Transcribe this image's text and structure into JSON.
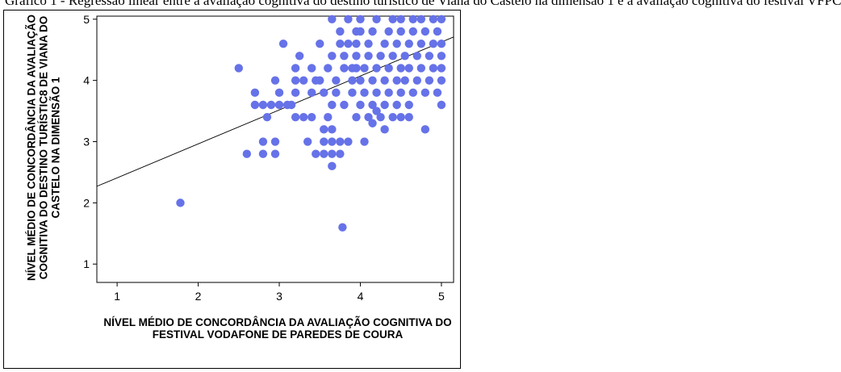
{
  "caption": "Gráfico 1 - Regressão linear entre a avaliação cognitiva do destino turístico de Viana do Castelo na dimensão 1 e a avaliação cognitiva do festival VFPC",
  "chart_data": {
    "type": "scatter",
    "title": "",
    "xlabel": "NÍVEL MÉDIO DE CONCORDÂNCIA DA AVALIAÇÃO COGNITIVA DO FESTIVAL VODAFONE DE PAREDES DE COURA",
    "ylabel": "NÍVEL MÉDIO DE CONCORDÂNCIA DA AVALIAÇÃO COGNITIVA DO DESTINO TURÍSTIC8 DE VIANA DO CASTELO NA DIMENSÃO 1",
    "xlim": [
      0.75,
      5.15
    ],
    "ylim": [
      0.7,
      5.05
    ],
    "xticks": [
      "1",
      "2",
      "3",
      "4",
      "5"
    ],
    "yticks": [
      "1",
      "2",
      "3",
      "4",
      "5"
    ],
    "grid": false,
    "point_color": "#6672e8",
    "regression_line": {
      "x0": 0.75,
      "y0": 2.27,
      "x1": 5.15,
      "y1": 4.71
    },
    "points": [
      [
        1.78,
        2.0
      ],
      [
        2.5,
        4.2
      ],
      [
        2.6,
        2.8
      ],
      [
        2.7,
        3.8
      ],
      [
        2.7,
        3.6
      ],
      [
        2.8,
        3.6
      ],
      [
        2.8,
        3.0
      ],
      [
        2.8,
        2.8
      ],
      [
        2.85,
        3.4
      ],
      [
        2.9,
        3.6
      ],
      [
        2.95,
        3.0
      ],
      [
        2.95,
        2.8
      ],
      [
        2.95,
        4.0
      ],
      [
        3.0,
        3.6
      ],
      [
        3.0,
        3.8
      ],
      [
        3.05,
        4.6
      ],
      [
        3.1,
        3.6
      ],
      [
        3.15,
        3.6
      ],
      [
        3.2,
        3.4
      ],
      [
        3.2,
        4.0
      ],
      [
        3.2,
        4.2
      ],
      [
        3.2,
        3.8
      ],
      [
        3.25,
        4.4
      ],
      [
        3.3,
        3.4
      ],
      [
        3.3,
        4.0
      ],
      [
        3.35,
        3.0
      ],
      [
        3.4,
        4.2
      ],
      [
        3.4,
        3.8
      ],
      [
        3.4,
        3.4
      ],
      [
        3.45,
        4.0
      ],
      [
        3.45,
        2.8
      ],
      [
        3.5,
        4.6
      ],
      [
        3.5,
        4.0
      ],
      [
        3.55,
        3.8
      ],
      [
        3.55,
        3.2
      ],
      [
        3.55,
        3.0
      ],
      [
        3.55,
        2.8
      ],
      [
        3.6,
        4.2
      ],
      [
        3.6,
        3.4
      ],
      [
        3.65,
        5.0
      ],
      [
        3.65,
        4.4
      ],
      [
        3.65,
        3.6
      ],
      [
        3.65,
        3.2
      ],
      [
        3.65,
        3.0
      ],
      [
        3.65,
        2.8
      ],
      [
        3.65,
        2.6
      ],
      [
        3.7,
        4.0
      ],
      [
        3.7,
        3.8
      ],
      [
        3.75,
        4.8
      ],
      [
        3.75,
        4.6
      ],
      [
        3.75,
        3.0
      ],
      [
        3.75,
        2.8
      ],
      [
        3.78,
        1.6
      ],
      [
        3.8,
        4.4
      ],
      [
        3.8,
        4.2
      ],
      [
        3.8,
        3.6
      ],
      [
        3.85,
        3.0
      ],
      [
        3.85,
        4.6
      ],
      [
        3.85,
        5.0
      ],
      [
        3.9,
        4.0
      ],
      [
        3.9,
        4.2
      ],
      [
        3.9,
        3.8
      ],
      [
        3.95,
        4.8
      ],
      [
        3.95,
        4.6
      ],
      [
        3.95,
        4.4
      ],
      [
        3.95,
        4.2
      ],
      [
        3.95,
        3.4
      ],
      [
        4.0,
        3.6
      ],
      [
        4.0,
        4.0
      ],
      [
        4.0,
        4.8
      ],
      [
        4.0,
        5.0
      ],
      [
        4.05,
        4.2
      ],
      [
        4.05,
        3.8
      ],
      [
        4.05,
        3.0
      ],
      [
        4.1,
        4.6
      ],
      [
        4.1,
        4.4
      ],
      [
        4.1,
        3.4
      ],
      [
        4.15,
        4.8
      ],
      [
        4.15,
        4.0
      ],
      [
        4.15,
        3.6
      ],
      [
        4.15,
        3.3
      ],
      [
        4.2,
        4.2
      ],
      [
        4.2,
        3.8
      ],
      [
        4.2,
        3.5
      ],
      [
        4.2,
        5.0
      ],
      [
        4.25,
        4.4
      ],
      [
        4.25,
        3.4
      ],
      [
        4.3,
        4.6
      ],
      [
        4.3,
        4.0
      ],
      [
        4.3,
        3.6
      ],
      [
        4.3,
        3.2
      ],
      [
        4.35,
        4.8
      ],
      [
        4.35,
        4.2
      ],
      [
        4.35,
        3.8
      ],
      [
        4.4,
        5.0
      ],
      [
        4.4,
        4.4
      ],
      [
        4.4,
        3.4
      ],
      [
        4.45,
        4.6
      ],
      [
        4.45,
        4.0
      ],
      [
        4.45,
        3.6
      ],
      [
        4.5,
        4.8
      ],
      [
        4.5,
        4.2
      ],
      [
        4.5,
        3.8
      ],
      [
        4.5,
        3.4
      ],
      [
        4.5,
        5.0
      ],
      [
        4.55,
        4.4
      ],
      [
        4.55,
        4.0
      ],
      [
        4.6,
        4.6
      ],
      [
        4.6,
        4.2
      ],
      [
        4.6,
        3.6
      ],
      [
        4.6,
        3.4
      ],
      [
        4.65,
        5.0
      ],
      [
        4.65,
        4.8
      ],
      [
        4.65,
        3.8
      ],
      [
        4.7,
        4.4
      ],
      [
        4.7,
        4.0
      ],
      [
        4.75,
        4.6
      ],
      [
        4.75,
        4.2
      ],
      [
        4.75,
        5.0
      ],
      [
        4.8,
        3.2
      ],
      [
        4.8,
        4.8
      ],
      [
        4.8,
        3.8
      ],
      [
        4.85,
        4.4
      ],
      [
        4.85,
        4.0
      ],
      [
        4.9,
        4.6
      ],
      [
        4.9,
        5.0
      ],
      [
        4.9,
        4.2
      ],
      [
        4.95,
        4.8
      ],
      [
        4.95,
        3.8
      ],
      [
        5.0,
        4.0
      ],
      [
        5.0,
        4.4
      ],
      [
        5.0,
        4.6
      ],
      [
        5.0,
        5.0
      ],
      [
        5.0,
        3.6
      ],
      [
        5.0,
        4.2
      ]
    ]
  }
}
